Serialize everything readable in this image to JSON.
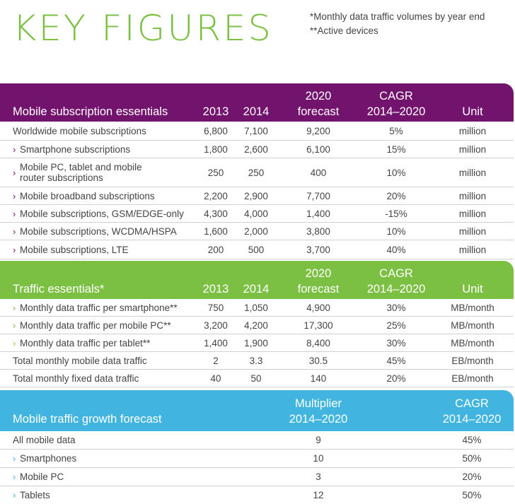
{
  "title": "KEY FIGURES",
  "notes": [
    "*Monthly data traffic volumes by year end",
    "**Active devices"
  ],
  "colors": {
    "purple": "#72136e",
    "green": "#7bc043",
    "blue": "#41b5e0"
  },
  "subscriptions": {
    "header": {
      "name": "Mobile subscription essentials",
      "y2013": "2013",
      "y2014": "2014",
      "f2020_l1": "2020",
      "f2020_l2": "forecast",
      "cagr_l1": "CAGR",
      "cagr_l2": "2014–2020",
      "unit": "Unit"
    },
    "rows": [
      {
        "label": "Worldwide mobile subscriptions",
        "v2013": "6,800",
        "v2014": "7,100",
        "v2020": "9,200",
        "cagr": "5%",
        "unit": "million"
      },
      {
        "label": "Smartphone subscriptions",
        "v2013": "1,800",
        "v2014": "2,600",
        "v2020": "6,100",
        "cagr": "15%",
        "unit": "million"
      },
      {
        "label": "Mobile PC, tablet and mobile",
        "label2": "router subscriptions",
        "v2013": "250",
        "v2014": "250",
        "v2020": "400",
        "cagr": "10%",
        "unit": "million"
      },
      {
        "label": "Mobile broadband subscriptions",
        "v2013": "2,200",
        "v2014": "2,900",
        "v2020": "7,700",
        "cagr": "20%",
        "unit": "million"
      },
      {
        "label": "Mobile subscriptions, GSM/EDGE-only",
        "v2013": "4,300",
        "v2014": "4,000",
        "v2020": "1,400",
        "cagr": "-15%",
        "unit": "million"
      },
      {
        "label": "Mobile subscriptions, WCDMA/HSPA",
        "v2013": "1,600",
        "v2014": "2,000",
        "v2020": "3,800",
        "cagr": "10%",
        "unit": "million"
      },
      {
        "label": "Mobile subscriptions, LTE",
        "v2013": "200",
        "v2014": "500",
        "v2020": "3,700",
        "cagr": "40%",
        "unit": "million"
      }
    ]
  },
  "traffic": {
    "header": {
      "name": "Traffic essentials*",
      "y2013": "2013",
      "y2014": "2014",
      "f2020_l1": "2020",
      "f2020_l2": "forecast",
      "cagr_l1": "CAGR",
      "cagr_l2": "2014–2020",
      "unit": "Unit"
    },
    "rows": [
      {
        "label": "Monthly data traffic per smartphone**",
        "v2013": "750",
        "v2014": "1,050",
        "v2020": "4,900",
        "cagr": "30%",
        "unit": "MB/month"
      },
      {
        "label": "Monthly data traffic per mobile PC**",
        "v2013": "3,200",
        "v2014": "4,200",
        "v2020": "17,300",
        "cagr": "25%",
        "unit": "MB/month"
      },
      {
        "label": "Monthly data traffic per tablet**",
        "v2013": "1,400",
        "v2014": "1,900",
        "v2020": "8,400",
        "cagr": "30%",
        "unit": "MB/month"
      },
      {
        "label": "Total monthly mobile data traffic",
        "v2013": "2",
        "v2014": "3.3",
        "v2020": "30.5",
        "cagr": "45%",
        "unit": "EB/month"
      },
      {
        "label": "Total monthly fixed data traffic",
        "v2013": "40",
        "v2014": "50",
        "v2020": "140",
        "cagr": "20%",
        "unit": "EB/month"
      }
    ]
  },
  "growth": {
    "header": {
      "name": "Mobile traffic growth forecast",
      "mult_l1": "Multiplier",
      "mult_l2": "2014–2020",
      "cagr_l1": "CAGR",
      "cagr_l2": "2014–2020"
    },
    "rows": [
      {
        "label": "All mobile data",
        "mult": "9",
        "cagr": "45%"
      },
      {
        "label": "Smartphones",
        "mult": "10",
        "cagr": "50%"
      },
      {
        "label": "Mobile PC",
        "mult": "3",
        "cagr": "20%"
      },
      {
        "label": "Tablets",
        "mult": "12",
        "cagr": "50%"
      }
    ]
  },
  "chevron": "›"
}
